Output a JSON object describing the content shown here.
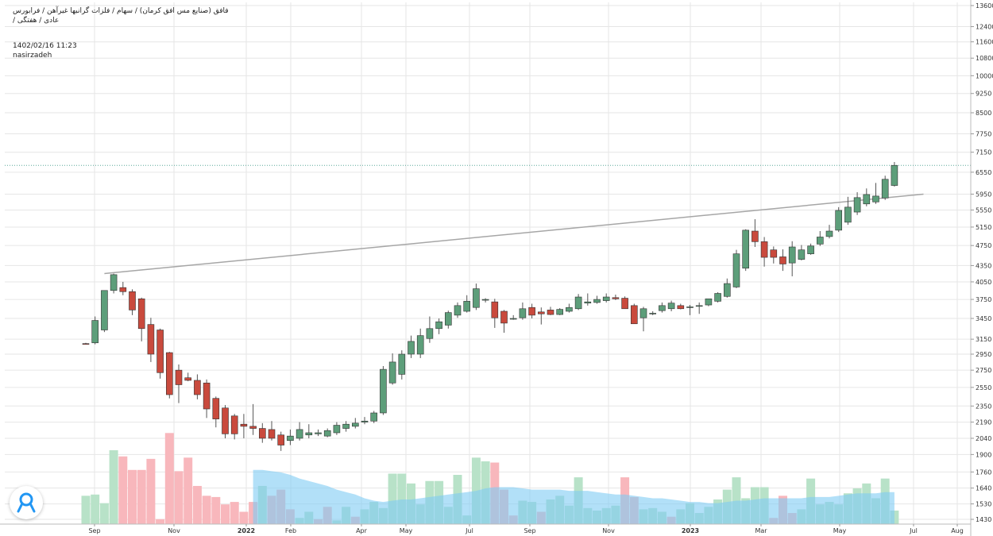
{
  "header": {
    "title_line1": "فافق (صنایع مس افق کرمان) / سهام / فلزات گرانبها غیرآهن / فرابورس",
    "title_line2": "عادی / هفتگی /",
    "timestamp": "1402/02/16 11:23",
    "author": "nasirzadeh"
  },
  "colors": {
    "up": "#5d9e7a",
    "down": "#c94a3d",
    "vol_up": "#b8e2c8",
    "vol_down": "#f8b7bc",
    "vol_ma": "#7fcbf3",
    "trendline": "#a6a6a6",
    "grid": "#e6e6e6",
    "price_line": "#5aa899"
  },
  "chart_data": {
    "type": "candlestick",
    "timeframe": "weekly",
    "y_scale": "log",
    "ylim": [
      1350,
      13600
    ],
    "y_ticks": [
      13600,
      12400,
      11600,
      10800,
      10000,
      9250,
      8500,
      7750,
      7150,
      6550,
      5950,
      5550,
      5150,
      4750,
      4350,
      4050,
      3750,
      3450,
      3150,
      2950,
      2750,
      2550,
      2350,
      2190,
      2040,
      1900,
      1760,
      1640,
      1530,
      1430
    ],
    "x_labels": [
      "Sep",
      "Nov",
      "2022",
      "Feb",
      "Apr",
      "May",
      "Jul",
      "Sep",
      "Nov",
      "2023",
      "Mar",
      "May",
      "Jul",
      "Aug"
    ],
    "last_price": 6750,
    "trendline": {
      "start": [
        2,
        4200
      ],
      "end": [
        85,
        5950
      ]
    },
    "candles": [
      [
        3090,
        3100,
        3080,
        3080
      ],
      [
        3100,
        3480,
        3080,
        3420
      ],
      [
        3280,
        3900,
        3250,
        3900
      ],
      [
        3900,
        4200,
        3850,
        4180
      ],
      [
        3950,
        4050,
        3820,
        3880
      ],
      [
        3880,
        3920,
        3500,
        3580
      ],
      [
        3760,
        3780,
        3120,
        3300
      ],
      [
        3360,
        3460,
        2850,
        2950
      ],
      [
        3280,
        3300,
        2650,
        2720
      ],
      [
        2970,
        2980,
        2430,
        2470
      ],
      [
        2750,
        2820,
        2380,
        2580
      ],
      [
        2660,
        2720,
        2620,
        2630
      ],
      [
        2630,
        2700,
        2420,
        2470
      ],
      [
        2600,
        2640,
        2230,
        2320
      ],
      [
        2430,
        2450,
        2140,
        2220
      ],
      [
        2330,
        2360,
        2040,
        2080
      ],
      [
        2250,
        2270,
        2030,
        2080
      ],
      [
        2170,
        2270,
        2040,
        2150
      ],
      [
        2150,
        2370,
        2070,
        2130
      ],
      [
        2130,
        2180,
        2000,
        2040
      ],
      [
        2120,
        2200,
        2020,
        2040
      ],
      [
        2070,
        2100,
        1930,
        1980
      ],
      [
        2020,
        2120,
        1980,
        2060
      ],
      [
        2040,
        2190,
        2020,
        2120
      ],
      [
        2070,
        2170,
        2040,
        2090
      ],
      [
        2080,
        2120,
        2060,
        2090
      ],
      [
        2060,
        2130,
        2050,
        2110
      ],
      [
        2090,
        2190,
        2070,
        2160
      ],
      [
        2130,
        2200,
        2100,
        2170
      ],
      [
        2150,
        2230,
        2130,
        2180
      ],
      [
        2190,
        2240,
        2170,
        2200
      ],
      [
        2200,
        2300,
        2180,
        2280
      ],
      [
        2280,
        2800,
        2260,
        2760
      ],
      [
        2600,
        2960,
        2580,
        2850
      ],
      [
        2700,
        3000,
        2640,
        2950
      ],
      [
        2950,
        3200,
        2900,
        3120
      ],
      [
        2950,
        3300,
        2900,
        3200
      ],
      [
        3160,
        3480,
        3100,
        3300
      ],
      [
        3300,
        3450,
        3220,
        3400
      ],
      [
        3350,
        3570,
        3300,
        3540
      ],
      [
        3500,
        3700,
        3460,
        3650
      ],
      [
        3560,
        3820,
        3540,
        3720
      ],
      [
        3620,
        4020,
        3580,
        3930
      ],
      [
        3750,
        3770,
        3700,
        3750
      ],
      [
        3710,
        3760,
        3310,
        3460
      ],
      [
        3560,
        3580,
        3240,
        3380
      ],
      [
        3450,
        3500,
        3430,
        3450
      ],
      [
        3460,
        3700,
        3430,
        3600
      ],
      [
        3620,
        3680,
        3450,
        3500
      ],
      [
        3550,
        3620,
        3360,
        3520
      ],
      [
        3580,
        3630,
        3500,
        3510
      ],
      [
        3510,
        3610,
        3500,
        3590
      ],
      [
        3560,
        3680,
        3540,
        3620
      ],
      [
        3600,
        3840,
        3580,
        3790
      ],
      [
        3690,
        3850,
        3650,
        3710
      ],
      [
        3700,
        3810,
        3680,
        3750
      ],
      [
        3730,
        3850,
        3700,
        3790
      ],
      [
        3780,
        3830,
        3740,
        3760
      ],
      [
        3770,
        3800,
        3600,
        3600
      ],
      [
        3650,
        3680,
        3370,
        3370
      ],
      [
        3460,
        3630,
        3260,
        3600
      ],
      [
        3520,
        3560,
        3500,
        3530
      ],
      [
        3570,
        3700,
        3540,
        3650
      ],
      [
        3600,
        3730,
        3560,
        3690
      ],
      [
        3650,
        3680,
        3590,
        3600
      ],
      [
        3630,
        3660,
        3500,
        3630
      ],
      [
        3640,
        3700,
        3520,
        3650
      ],
      [
        3660,
        3760,
        3640,
        3760
      ],
      [
        3720,
        3870,
        3700,
        3850
      ],
      [
        3800,
        4110,
        3780,
        4020
      ],
      [
        3960,
        4660,
        3940,
        4580
      ],
      [
        4300,
        5100,
        4250,
        5080
      ],
      [
        5060,
        5330,
        4720,
        4830
      ],
      [
        4830,
        4930,
        4330,
        4510
      ],
      [
        4660,
        4730,
        4390,
        4510
      ],
      [
        4520,
        4670,
        4250,
        4380
      ],
      [
        4400,
        4840,
        4150,
        4720
      ],
      [
        4470,
        4760,
        4450,
        4660
      ],
      [
        4580,
        4790,
        4560,
        4740
      ],
      [
        4780,
        5060,
        4740,
        4930
      ],
      [
        4940,
        5200,
        4900,
        5060
      ],
      [
        5080,
        5620,
        5040,
        5540
      ],
      [
        5260,
        5880,
        5200,
        5620
      ],
      [
        5500,
        6000,
        5430,
        5860
      ],
      [
        5700,
        6100,
        5640,
        5940
      ],
      [
        5750,
        6250,
        5700,
        5900
      ],
      [
        5850,
        6450,
        5800,
        6350
      ],
      [
        6180,
        6850,
        6150,
        6750
      ]
    ],
    "volume": [
      [
        0.23,
        true
      ],
      [
        0.24,
        true
      ],
      [
        0.17,
        true
      ],
      [
        0.6,
        true
      ],
      [
        0.55,
        false
      ],
      [
        0.44,
        false
      ],
      [
        0.44,
        false
      ],
      [
        0.53,
        false
      ],
      [
        0.04,
        false
      ],
      [
        0.74,
        false
      ],
      [
        0.43,
        false
      ],
      [
        0.54,
        false
      ],
      [
        0.31,
        false
      ],
      [
        0.23,
        false
      ],
      [
        0.22,
        false
      ],
      [
        0.16,
        false
      ],
      [
        0.18,
        false
      ],
      [
        0.1,
        false
      ],
      [
        0.18,
        false
      ],
      [
        0.31,
        true
      ],
      [
        0.23,
        false
      ],
      [
        0.28,
        false
      ],
      [
        0.12,
        false
      ],
      [
        0.05,
        true
      ],
      [
        0.1,
        true
      ],
      [
        0.04,
        false
      ],
      [
        0.14,
        false
      ],
      [
        0.03,
        true
      ],
      [
        0.14,
        true
      ],
      [
        0.06,
        false
      ],
      [
        0.12,
        true
      ],
      [
        0.18,
        true
      ],
      [
        0.13,
        true
      ],
      [
        0.41,
        true
      ],
      [
        0.41,
        true
      ],
      [
        0.33,
        true
      ],
      [
        0.16,
        true
      ],
      [
        0.35,
        true
      ],
      [
        0.35,
        true
      ],
      [
        0.14,
        true
      ],
      [
        0.4,
        true
      ],
      [
        0.07,
        true
      ],
      [
        0.54,
        true
      ],
      [
        0.51,
        true
      ],
      [
        0.5,
        false
      ],
      [
        0.28,
        false
      ],
      [
        0.07,
        false
      ],
      [
        0.19,
        true
      ],
      [
        0.18,
        true
      ],
      [
        0.1,
        false
      ],
      [
        0.2,
        true
      ],
      [
        0.23,
        true
      ],
      [
        0.15,
        true
      ],
      [
        0.38,
        true
      ],
      [
        0.13,
        true
      ],
      [
        0.11,
        true
      ],
      [
        0.13,
        true
      ],
      [
        0.15,
        true
      ],
      [
        0.38,
        false
      ],
      [
        0.22,
        false
      ],
      [
        0.12,
        true
      ],
      [
        0.13,
        true
      ],
      [
        0.1,
        true
      ],
      [
        0.06,
        false
      ],
      [
        0.12,
        true
      ],
      [
        0.17,
        true
      ],
      [
        0.09,
        true
      ],
      [
        0.14,
        true
      ],
      [
        0.2,
        true
      ],
      [
        0.28,
        true
      ],
      [
        0.38,
        true
      ],
      [
        0.21,
        true
      ],
      [
        0.3,
        true
      ],
      [
        0.3,
        true
      ],
      [
        0.05,
        false
      ],
      [
        0.23,
        false
      ],
      [
        0.09,
        false
      ],
      [
        0.12,
        true
      ],
      [
        0.37,
        true
      ],
      [
        0.16,
        true
      ],
      [
        0.18,
        true
      ],
      [
        0.16,
        true
      ],
      [
        0.25,
        true
      ],
      [
        0.29,
        true
      ],
      [
        0.33,
        true
      ],
      [
        0.21,
        true
      ],
      [
        0.37,
        true
      ],
      [
        0.11,
        true
      ]
    ],
    "volume_ma": [
      null,
      null,
      null,
      null,
      null,
      null,
      null,
      null,
      null,
      null,
      null,
      null,
      null,
      null,
      null,
      null,
      null,
      null,
      0.44,
      0.44,
      0.43,
      0.42,
      0.4,
      0.37,
      0.35,
      0.33,
      0.31,
      0.28,
      0.26,
      0.24,
      0.21,
      0.19,
      0.18,
      0.19,
      0.2,
      0.2,
      0.21,
      0.22,
      0.23,
      0.24,
      0.25,
      0.26,
      0.27,
      0.29,
      0.3,
      0.3,
      0.3,
      0.29,
      0.28,
      0.28,
      0.28,
      0.28,
      0.27,
      0.27,
      0.27,
      0.26,
      0.25,
      0.24,
      0.24,
      0.23,
      0.22,
      0.21,
      0.21,
      0.2,
      0.19,
      0.18,
      0.18,
      0.17,
      0.17,
      0.18,
      0.19,
      0.19,
      0.2,
      0.21,
      0.21,
      0.21,
      0.21,
      0.21,
      0.22,
      0.22,
      0.22,
      0.23,
      0.24,
      0.25,
      0.25,
      0.25,
      0.26,
      0.26
    ]
  }
}
